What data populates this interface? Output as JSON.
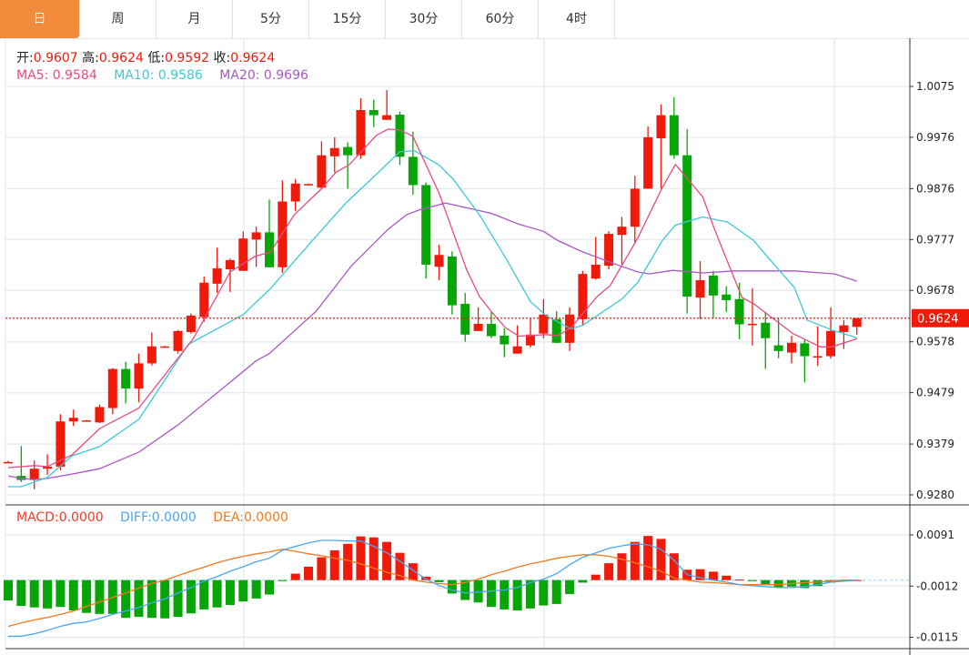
{
  "tabs": [
    {
      "label": "日",
      "active": true
    },
    {
      "label": "周",
      "active": false
    },
    {
      "label": "月",
      "active": false
    },
    {
      "label": "5分",
      "active": false
    },
    {
      "label": "15分",
      "active": false
    },
    {
      "label": "30分",
      "active": false
    },
    {
      "label": "60分",
      "active": false
    },
    {
      "label": "4时",
      "active": false
    }
  ],
  "ohlc_legend": {
    "open_label": "开:",
    "open": "0.9607",
    "high_label": "高:",
    "high": "0.9624",
    "low_label": "低:",
    "low": "0.9592",
    "close_label": "收:",
    "close": "0.9624"
  },
  "ma_legend": {
    "ma5_label": "MA5:",
    "ma5": "0.9584",
    "ma10_label": "MA10:",
    "ma10": "0.9586",
    "ma20_label": "MA20:",
    "ma20": "0.9696"
  },
  "macd_legend": {
    "macd_label": "MACD:",
    "macd": "0.0000",
    "diff_label": "DIFF:",
    "diff": "0.0000",
    "dea_label": "DEA:",
    "dea": "0.0000"
  },
  "colors": {
    "up": "#f01a0a",
    "down": "#08a508",
    "ma5": "#ea4a80",
    "ma10": "#3ec8da",
    "ma20": "#a957c8",
    "diff": "#4aa6f0",
    "dea": "#f7781c",
    "accent": "#f28b3c"
  },
  "chart_data": [
    {
      "type": "candlestick",
      "title": "",
      "candle_format": [
        "open",
        "high",
        "low",
        "close"
      ],
      "y_ticks": [
        "1.0075",
        "0.9976",
        "0.9876",
        "0.9777",
        "0.9678",
        "0.9578",
        "0.9479",
        "0.9379",
        "0.9280"
      ],
      "ylim": [
        0.928,
        1.0075
      ],
      "last_price": "0.9624",
      "grid": true,
      "candles": [
        [
          0.9344,
          0.9346,
          0.9342,
          0.9344
        ],
        [
          0.9317,
          0.9375,
          0.9305,
          0.9309
        ],
        [
          0.9309,
          0.9347,
          0.9291,
          0.9331
        ],
        [
          0.9331,
          0.9359,
          0.9319,
          0.9335
        ],
        [
          0.9335,
          0.9437,
          0.9328,
          0.9423
        ],
        [
          0.9423,
          0.9446,
          0.9414,
          0.943
        ],
        [
          0.9425,
          0.9426,
          0.9424,
          0.9425
        ],
        [
          0.9421,
          0.9456,
          0.942,
          0.9451
        ],
        [
          0.9449,
          0.9527,
          0.9437,
          0.9525
        ],
        [
          0.9525,
          0.9539,
          0.9458,
          0.9487
        ],
        [
          0.9487,
          0.9555,
          0.946,
          0.9536
        ],
        [
          0.9536,
          0.9596,
          0.9532,
          0.9569
        ],
        [
          0.9569,
          0.957,
          0.9568,
          0.9569
        ],
        [
          0.956,
          0.9601,
          0.9555,
          0.9599
        ],
        [
          0.9597,
          0.9633,
          0.9594,
          0.9629
        ],
        [
          0.9626,
          0.9705,
          0.9617,
          0.9693
        ],
        [
          0.9691,
          0.9761,
          0.9673,
          0.9721
        ],
        [
          0.9719,
          0.974,
          0.9675,
          0.9737
        ],
        [
          0.9716,
          0.9793,
          0.9716,
          0.9779
        ],
        [
          0.9777,
          0.9802,
          0.9724,
          0.9791
        ],
        [
          0.9791,
          0.9855,
          0.9723,
          0.9723
        ],
        [
          0.9723,
          0.9892,
          0.9712,
          0.9851
        ],
        [
          0.9851,
          0.9895,
          0.9832,
          0.9886
        ],
        [
          0.9885,
          0.9886,
          0.9884,
          0.9885
        ],
        [
          0.9878,
          0.9968,
          0.9876,
          0.9941
        ],
        [
          0.9939,
          0.9976,
          0.9908,
          0.9955
        ],
        [
          0.9957,
          0.9966,
          0.9876,
          0.9941
        ],
        [
          0.9941,
          1.0052,
          0.9934,
          1.0029
        ],
        [
          1.0029,
          1.0049,
          0.9996,
          1.0019
        ],
        [
          1.001,
          1.0068,
          1.001,
          1.0019
        ],
        [
          1.002,
          1.0026,
          0.9922,
          0.9938
        ],
        [
          0.9938,
          0.9987,
          0.9864,
          0.9883
        ],
        [
          0.9883,
          0.9888,
          0.9701,
          0.9728
        ],
        [
          0.9724,
          0.9767,
          0.9698,
          0.9747
        ],
        [
          0.9744,
          0.9754,
          0.9631,
          0.9649
        ],
        [
          0.9652,
          0.9673,
          0.9578,
          0.9592
        ],
        [
          0.9599,
          0.9645,
          0.9599,
          0.9613
        ],
        [
          0.9613,
          0.9636,
          0.9585,
          0.9589
        ],
        [
          0.959,
          0.9604,
          0.9548,
          0.9573
        ],
        [
          0.9555,
          0.961,
          0.9555,
          0.9569
        ],
        [
          0.9571,
          0.9624,
          0.9567,
          0.9592
        ],
        [
          0.9594,
          0.9661,
          0.9585,
          0.9631
        ],
        [
          0.9622,
          0.9638,
          0.9575,
          0.9576
        ],
        [
          0.9576,
          0.9645,
          0.956,
          0.9631
        ],
        [
          0.9622,
          0.9716,
          0.961,
          0.971
        ],
        [
          0.9701,
          0.9782,
          0.9699,
          0.9728
        ],
        [
          0.9726,
          0.9793,
          0.9719,
          0.9788
        ],
        [
          0.9786,
          0.9821,
          0.9728,
          0.9802
        ],
        [
          0.9802,
          0.9901,
          0.977,
          0.9876
        ],
        [
          0.9876,
          0.9997,
          0.9876,
          0.9976
        ],
        [
          0.9974,
          1.004,
          0.9876,
          1.0019
        ],
        [
          1.0019,
          1.0054,
          0.9934,
          0.9941
        ],
        [
          0.9941,
          0.9992,
          0.9633,
          0.9666
        ],
        [
          0.9664,
          0.9735,
          0.9622,
          0.9698
        ],
        [
          0.9707,
          0.9716,
          0.9624,
          0.9668
        ],
        [
          0.967,
          0.9686,
          0.9636,
          0.9659
        ],
        [
          0.9661,
          0.9693,
          0.9583,
          0.9612
        ],
        [
          0.9613,
          0.9682,
          0.9571,
          0.9613
        ],
        [
          0.9615,
          0.9636,
          0.9525,
          0.9585
        ],
        [
          0.9571,
          0.9624,
          0.9546,
          0.956
        ],
        [
          0.9557,
          0.959,
          0.9536,
          0.9576
        ],
        [
          0.9575,
          0.9582,
          0.9499,
          0.955
        ],
        [
          0.955,
          0.9608,
          0.9531,
          0.955
        ],
        [
          0.955,
          0.9645,
          0.9545,
          0.9599
        ],
        [
          0.9597,
          0.962,
          0.9564,
          0.961
        ],
        [
          0.9607,
          0.9624,
          0.9592,
          0.9624
        ]
      ],
      "ma5": [
        [
          0,
          0.9333
        ],
        [
          2,
          0.9337
        ],
        [
          3,
          0.9335
        ],
        [
          4.9,
          0.9358
        ],
        [
          7,
          0.9409
        ],
        [
          10,
          0.9449
        ],
        [
          13.4,
          0.9559
        ],
        [
          14.2,
          0.9585
        ],
        [
          17,
          0.9714
        ],
        [
          18.9,
          0.9744
        ],
        [
          20.1,
          0.9753
        ],
        [
          21.9,
          0.9825
        ],
        [
          24,
          0.9876
        ],
        [
          25.1,
          0.9908
        ],
        [
          26.1,
          0.9922
        ],
        [
          28.2,
          0.998
        ],
        [
          29.1,
          0.9992
        ],
        [
          30,
          0.999
        ],
        [
          31,
          0.9978
        ],
        [
          33,
          0.9867
        ],
        [
          34.1,
          0.979
        ],
        [
          35.1,
          0.9719
        ],
        [
          36.1,
          0.9666
        ],
        [
          37.1,
          0.9634
        ],
        [
          38.1,
          0.9605
        ],
        [
          39.1,
          0.9589
        ],
        [
          41.2,
          0.9592
        ],
        [
          42.1,
          0.959
        ],
        [
          43.1,
          0.9605
        ],
        [
          45.1,
          0.9666
        ],
        [
          46.1,
          0.9687
        ],
        [
          48.2,
          0.9779
        ],
        [
          50.1,
          0.9878
        ],
        [
          51.1,
          0.9923
        ],
        [
          53.2,
          0.986
        ],
        [
          54.1,
          0.9797
        ],
        [
          56.2,
          0.9664
        ],
        [
          57.1,
          0.9652
        ],
        [
          60.1,
          0.9594
        ],
        [
          62.2,
          0.9568
        ],
        [
          63.1,
          0.9568
        ],
        [
          65,
          0.9584
        ]
      ],
      "ma10": [
        [
          0,
          0.9296
        ],
        [
          1,
          0.9296
        ],
        [
          3,
          0.9314
        ],
        [
          4.9,
          0.9356
        ],
        [
          7,
          0.9374
        ],
        [
          10,
          0.9427
        ],
        [
          13.8,
          0.9573
        ],
        [
          18,
          0.9631
        ],
        [
          20.1,
          0.9682
        ],
        [
          23.6,
          0.9784
        ],
        [
          25.9,
          0.9849
        ],
        [
          28.2,
          0.9904
        ],
        [
          30,
          0.9948
        ],
        [
          31.1,
          0.995
        ],
        [
          33,
          0.9922
        ],
        [
          34.1,
          0.9894
        ],
        [
          36.1,
          0.9825
        ],
        [
          38.2,
          0.9737
        ],
        [
          40,
          0.9656
        ],
        [
          41.2,
          0.9629
        ],
        [
          43.1,
          0.9603
        ],
        [
          44,
          0.961
        ],
        [
          47,
          0.9661
        ],
        [
          48.2,
          0.9693
        ],
        [
          50.1,
          0.9775
        ],
        [
          51.1,
          0.9805
        ],
        [
          53.2,
          0.9821
        ],
        [
          55.1,
          0.9811
        ],
        [
          57.1,
          0.9775
        ],
        [
          58.1,
          0.9745
        ],
        [
          60.2,
          0.9684
        ],
        [
          61.2,
          0.962
        ],
        [
          63.3,
          0.9599
        ],
        [
          65,
          0.9586
        ]
      ],
      "ma20": [
        [
          0,
          0.9317
        ],
        [
          1,
          0.9312
        ],
        [
          2,
          0.931
        ],
        [
          3,
          0.9312
        ],
        [
          5,
          0.9321
        ],
        [
          7,
          0.9331
        ],
        [
          10,
          0.9363
        ],
        [
          13,
          0.9416
        ],
        [
          19,
          0.9541
        ],
        [
          20,
          0.9555
        ],
        [
          23.6,
          0.9638
        ],
        [
          26.3,
          0.9726
        ],
        [
          29.1,
          0.9797
        ],
        [
          30.5,
          0.9825
        ],
        [
          31.4,
          0.9834
        ],
        [
          33.5,
          0.9848
        ],
        [
          37,
          0.9828
        ],
        [
          39.1,
          0.9807
        ],
        [
          41,
          0.9793
        ],
        [
          42.1,
          0.9775
        ],
        [
          44,
          0.9753
        ],
        [
          46.3,
          0.9731
        ],
        [
          48.2,
          0.9714
        ],
        [
          49.1,
          0.971
        ],
        [
          50.9,
          0.9717
        ],
        [
          53.2,
          0.9712
        ],
        [
          55.6,
          0.9716
        ],
        [
          60.2,
          0.9716
        ],
        [
          63.3,
          0.971
        ],
        [
          65,
          0.9696
        ]
      ]
    },
    {
      "type": "bar+line",
      "title": "MACD",
      "y_ticks": [
        "0.0091",
        "-0.0012",
        "-0.0115"
      ],
      "ylim": [
        -0.0115,
        0.0091
      ],
      "macd": [
        -0.0041,
        -0.0052,
        -0.0055,
        -0.0057,
        -0.0054,
        -0.0061,
        -0.0066,
        -0.0068,
        -0.0068,
        -0.0076,
        -0.0074,
        -0.0076,
        -0.0077,
        -0.0074,
        -0.0067,
        -0.0059,
        -0.0055,
        -0.005,
        -0.0043,
        -0.0037,
        -0.0029,
        -0.0002,
        0.0013,
        0.0027,
        0.0046,
        0.006,
        0.0073,
        0.0088,
        0.0086,
        0.0077,
        0.0055,
        0.0034,
        0.0007,
        -0.0004,
        -0.0027,
        -0.004,
        -0.0045,
        -0.0054,
        -0.0059,
        -0.0061,
        -0.0057,
        -0.0051,
        -0.0048,
        -0.0028,
        -0.0005,
        0.0011,
        0.0034,
        0.0054,
        0.0077,
        0.0089,
        0.0083,
        0.0054,
        0.0021,
        0.0022,
        0.0017,
        0.0009,
        0.0001,
        -0.0002,
        -0.0009,
        -0.0015,
        -0.0013,
        -0.0016,
        -0.0012,
        -0.0005,
        -0.0001,
        0.0
      ],
      "diff": [
        -0.0113,
        -0.0113,
        -0.0108,
        -0.0101,
        -0.0093,
        -0.0087,
        -0.0084,
        -0.0077,
        -0.0069,
        -0.0062,
        -0.0055,
        -0.0046,
        -0.0038,
        -0.0026,
        -0.0015,
        -0.0002,
        0.0007,
        0.0018,
        0.0027,
        0.0037,
        0.0044,
        0.006,
        0.0068,
        0.0075,
        0.008,
        0.008,
        0.0079,
        0.0079,
        0.0068,
        0.0055,
        0.0038,
        0.002,
        0.0002,
        -0.0011,
        -0.002,
        -0.0026,
        -0.0024,
        -0.0022,
        -0.002,
        -0.0015,
        -0.0005,
        0.0002,
        0.0013,
        0.0031,
        0.0046,
        0.0055,
        0.0064,
        0.0069,
        0.0073,
        0.0071,
        0.0062,
        0.004,
        0.0011,
        0.0005,
        0.0,
        -0.0004,
        -0.0009,
        -0.0011,
        -0.0013,
        -0.0015,
        -0.0015,
        -0.0013,
        -0.0009,
        -0.0004,
        -0.0002,
        0.0
      ],
      "dea": [
        -0.0093,
        -0.0086,
        -0.008,
        -0.0075,
        -0.0069,
        -0.0062,
        -0.0053,
        -0.0044,
        -0.0035,
        -0.0026,
        -0.0016,
        -0.0007,
        0.0,
        0.0009,
        0.0018,
        0.0026,
        0.0035,
        0.0042,
        0.0048,
        0.0053,
        0.0057,
        0.0062,
        0.0058,
        0.0053,
        0.0049,
        0.0044,
        0.004,
        0.0033,
        0.0024,
        0.0016,
        0.0009,
        0.0,
        -0.0004,
        -0.0007,
        -0.0009,
        -0.0005,
        0.0002,
        0.0011,
        0.0018,
        0.0026,
        0.0033,
        0.0038,
        0.0044,
        0.0048,
        0.0051,
        0.0051,
        0.0048,
        0.0042,
        0.0035,
        0.0027,
        0.0018,
        0.0004,
        0.0,
        -0.0004,
        -0.0005,
        -0.0007,
        -0.0009,
        -0.0009,
        -0.0009,
        -0.0009,
        -0.0007,
        -0.0005,
        -0.0004,
        -0.0002,
        0.0,
        0.0
      ]
    }
  ]
}
